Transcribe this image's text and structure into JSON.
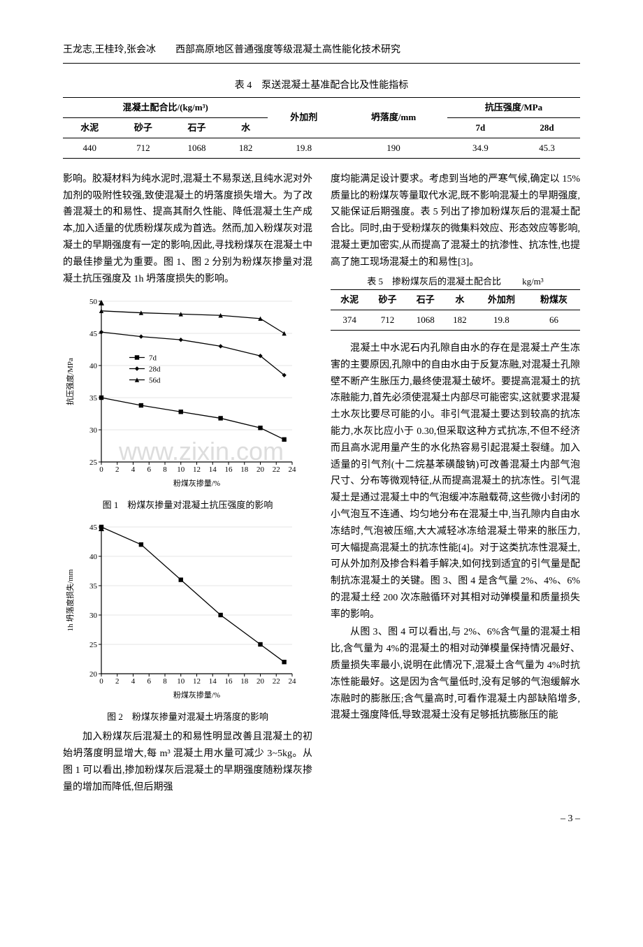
{
  "header": "王龙志,王桂玲,张会冰　　西部高原地区普通强度等级混凝土高性能化技术研究",
  "table4": {
    "caption": "表 4　泵送混凝土基准配合比及性能指标",
    "group_labels": {
      "mix": "混凝土配合比/(kg/m³)",
      "slump": "坍落度/mm",
      "strength": "抗压强度/MPa"
    },
    "headers": [
      "水泥",
      "砂子",
      "石子",
      "水",
      "外加剂",
      "slump",
      "7d",
      "28d"
    ],
    "header_display": {
      "cement": "水泥",
      "sand": "砂子",
      "stone": "石子",
      "water": "水",
      "admix": "外加剂",
      "d7": "7d",
      "d28": "28d"
    },
    "row": {
      "cement": "440",
      "sand": "712",
      "stone": "1068",
      "water": "182",
      "admix": "19.8",
      "slump": "190",
      "d7": "34.9",
      "d28": "45.3"
    }
  },
  "left_text": {
    "p1": "影响。胶凝材料为纯水泥时,混凝土不易泵送,且纯水泥对外加剂的吸附性较强,致使混凝土的坍落度损失增大。为了改善混凝土的和易性、提高其耐久性能、降低混凝土生产成本,加入适量的优质粉煤灰成为首选。然而,加入粉煤灰对混凝土的早期强度有一定的影响,因此,寻找粉煤灰在混凝土中的最佳掺量尤为重要。图 1、图 2 分别为粉煤灰掺量对混凝土抗压强度及 1h 坍落度损失的影响。",
    "p2": "加入粉煤灰后混凝土的和易性明显改善且混凝土的初始坍落度明显增大,每 m³ 混凝土用水量可减少 3~5kg。从图 1 可以看出,掺加粉煤灰后混凝土的早期强度随粉煤灰掺量的增加而降低,但后期强"
  },
  "right_text": {
    "p1": "度均能满足设计要求。考虑到当地的严寒气候,确定以 15%质量比的粉煤灰等量取代水泥,既不影响混凝土的早期强度,又能保证后期强度。表 5 列出了掺加粉煤灰后的混凝土配合比。同时,由于受粉煤灰的微集料效应、形态效应等影响,混凝土更加密实,从而提高了混凝土的抗渗性、抗冻性,也提高了施工现场混凝土的和易性[3]。",
    "p2": "混凝土中水泥石内孔隙自由水的存在是混凝土产生冻害的主要原因,孔隙中的自由水由于反复冻融,对混凝土孔隙壁不断产生胀压力,最终使混凝土破坏。要提高混凝土的抗冻融能力,首先必须使混凝土内部尽可能密实,这就要求混凝土水灰比要尽可能的小。非引气混凝土要达到较高的抗冻能力,水灰比应小于 0.30,但采取这种方式抗冻,不但不经济而且高水泥用量产生的水化热容易引起混凝土裂缝。加入适量的引气剂(十二烷基苯磺酸钠)可改善混凝土内部气泡尺寸、分布等微观特征,从而提高混凝土的抗冻性。引气混凝土是通过混凝土中的气泡缓冲冻融载荷,这些微小封闭的小气泡互不连通、均匀地分布在混凝土中,当孔隙内自由水冻结时,气泡被压缩,大大减轻冰冻给混凝土带来的胀压力,可大幅提高混凝土的抗冻性能[4]。对于这类抗冻性混凝土,可从外加剂及掺合料着手解决,如何找到适宜的引气量是配制抗冻混凝土的关键。图 3、图 4 是含气量 2%、4%、6%的混凝土经 200 次冻融循环对其相对动弹模量和质量损失率的影响。",
    "p3": "从图 3、图 4 可以看出,与 2%、6%含气量的混凝土相比,含气量为 4%的混凝土的相对动弹模量保持情况最好、质量损失率最小,说明在此情况下,混凝土含气量为 4%时抗冻性能最好。这是因为含气量低时,没有足够的气泡缓解水冻融时的膨胀压;含气量高时,可看作混凝土内部缺陷增多,混凝土强度降低,导致混凝土没有足够抵抗膨胀压的能"
  },
  "table5": {
    "caption": "表 5　掺粉煤灰后的混凝土配合比",
    "unit": "kg/m³",
    "headers": {
      "cement": "水泥",
      "sand": "砂子",
      "stone": "石子",
      "water": "水",
      "admix": "外加剂",
      "flyash": "粉煤灰"
    },
    "row": {
      "cement": "374",
      "sand": "712",
      "stone": "1068",
      "water": "182",
      "admix": "19.8",
      "flyash": "66"
    }
  },
  "chart1": {
    "type": "line",
    "title": "图 1　粉煤灰掺量对混凝土抗压强度的影响",
    "xlabel": "粉煤灰掺量/%",
    "ylabel": "抗压强度/MPa",
    "xlim": [
      0,
      24
    ],
    "ylim": [
      25,
      50
    ],
    "xticks": [
      0,
      2,
      4,
      6,
      8,
      10,
      12,
      14,
      16,
      18,
      20,
      22,
      24
    ],
    "yticks": [
      25,
      30,
      35,
      40,
      45,
      50
    ],
    "grid_color": "#e5e5e5",
    "axis_color": "#000000",
    "series": [
      {
        "name": "7d",
        "marker": "square",
        "color": "#000000",
        "x": [
          0,
          5,
          10,
          15,
          20,
          23
        ],
        "y": [
          35.0,
          33.8,
          32.8,
          31.8,
          30.3,
          28.5
        ]
      },
      {
        "name": "28d",
        "marker": "diamond",
        "color": "#000000",
        "x": [
          0,
          5,
          10,
          15,
          20,
          23
        ],
        "y": [
          45.2,
          44.5,
          44.0,
          43.0,
          41.5,
          38.5
        ]
      },
      {
        "name": "56d",
        "marker": "triangle",
        "color": "#000000",
        "x": [
          0,
          5,
          10,
          15,
          20,
          23
        ],
        "y": [
          48.5,
          48.2,
          48.0,
          47.8,
          47.3,
          45.0
        ]
      }
    ],
    "legend": [
      "7d",
      "28d",
      "56d"
    ]
  },
  "chart2": {
    "type": "line",
    "title": "图 2　粉煤灰掺量对混凝土坍落度的影响",
    "xlabel": "粉煤灰掺量/%",
    "ylabel": "1h 坍落度损失/mm",
    "xlim": [
      0,
      24
    ],
    "ylim": [
      20,
      45
    ],
    "xticks": [
      0,
      2,
      4,
      6,
      8,
      10,
      12,
      14,
      16,
      18,
      20,
      22,
      24
    ],
    "yticks": [
      20,
      25,
      30,
      35,
      40,
      45
    ],
    "grid_color": "#e5e5e5",
    "axis_color": "#000000",
    "series": [
      {
        "name": "loss",
        "marker": "square",
        "color": "#000000",
        "x": [
          0,
          5,
          10,
          15,
          20,
          23
        ],
        "y": [
          45,
          42,
          36,
          30,
          25,
          22
        ]
      }
    ]
  },
  "watermark": "www.zixin.com",
  "pagenum": "– 3 –"
}
